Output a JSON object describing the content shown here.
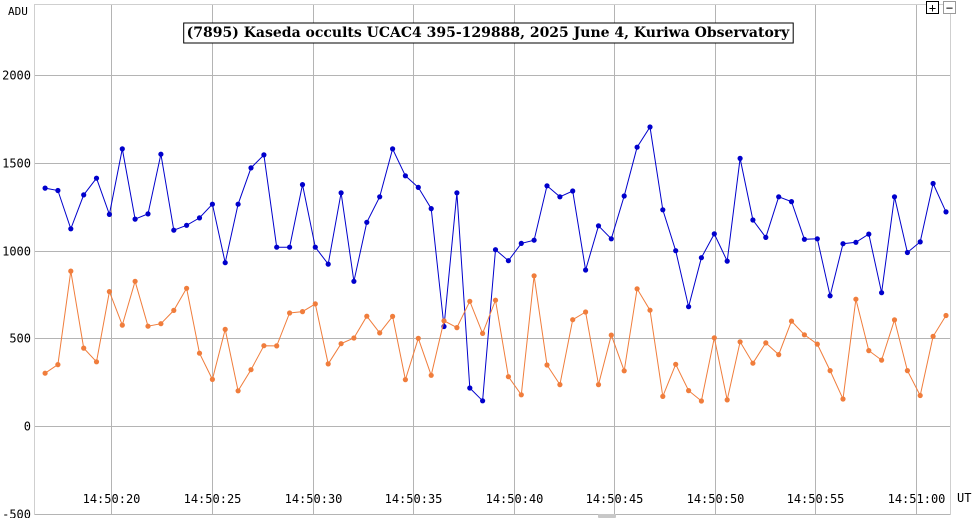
{
  "toolbar": {
    "zoom_in_label": "+",
    "zoom_out_label": "−"
  },
  "chart_data": {
    "type": "line",
    "title": "(7895) Kaseda occults UCAC4 395-129888, 2025 June 4, Kuriwa Observatory",
    "ylabel": "ADU",
    "xlabel": "UT",
    "ylim": [
      -500,
      2400
    ],
    "xlim": [
      "14:50:16.2",
      "14:51:01.7"
    ],
    "grid": true,
    "y_ticks": [
      2000,
      1500,
      1000,
      500,
      0,
      -500
    ],
    "x_ticks": [
      "14:50:20",
      "14:50:25",
      "14:50:30",
      "14:50:35",
      "14:50:40",
      "14:50:45",
      "14:50:50",
      "14:50:55",
      "14:51:00"
    ],
    "x_start": "14:50:16.7",
    "x_step_seconds": 0.64,
    "colors": {
      "series1": "#0000cc",
      "series2": "#f07d3c",
      "grid": "#b4b4b4"
    },
    "series": [
      {
        "values": [
          1357,
          1343,
          1125,
          1318,
          1413,
          1207,
          1580,
          1180,
          1210,
          1550,
          1117,
          1145,
          1187,
          1265,
          932,
          1265,
          1472,
          1546,
          1020,
          1020,
          1377,
          1020,
          924,
          1330,
          826,
          1162,
          1307,
          1580,
          1427,
          1361,
          1240,
          568,
          1330,
          218,
          145,
          1006,
          943,
          1042,
          1060,
          1370,
          1307,
          1340,
          890,
          1142,
          1068,
          1312,
          1590,
          1705,
          1233,
          1000,
          681,
          960,
          1096,
          941,
          1526,
          1175,
          1076,
          1307,
          1280,
          1065,
          1068,
          743,
          1040,
          1048,
          1095,
          761,
          1307,
          990,
          1050,
          1383,
          1221
        ]
      },
      {
        "values": [
          302,
          351,
          884,
          445,
          367,
          767,
          576,
          826,
          570,
          584,
          660,
          786,
          416,
          267,
          552,
          202,
          322,
          459,
          458,
          645,
          653,
          697,
          355,
          470,
          503,
          627,
          532,
          626,
          266,
          501,
          290,
          601,
          562,
          712,
          529,
          718,
          282,
          179,
          857,
          349,
          237,
          607,
          651,
          237,
          519,
          316,
          783,
          661,
          170,
          353,
          203,
          144,
          504,
          150,
          481,
          359,
          475,
          408,
          599,
          521,
          468,
          317,
          155,
          724,
          431,
          377,
          606,
          317,
          175,
          512,
          631
        ]
      }
    ]
  }
}
